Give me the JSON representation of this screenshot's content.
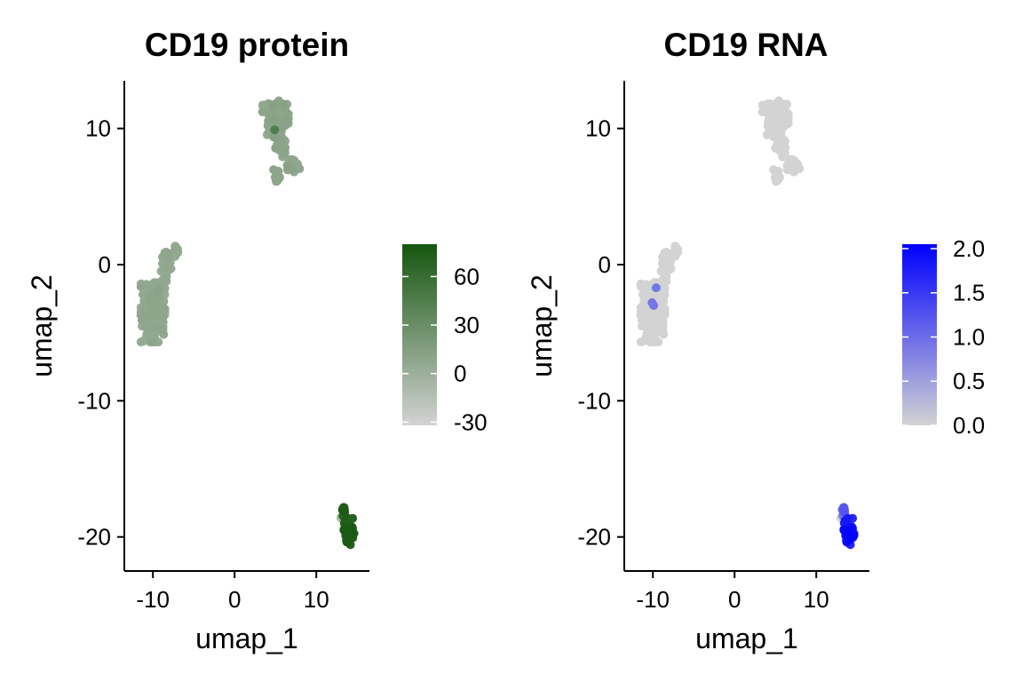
{
  "chart_data": [
    {
      "type": "scatter",
      "title": "CD19 protein",
      "xlabel": "umap_1",
      "ylabel": "umap_2",
      "xlim": [
        -13.5,
        16.5
      ],
      "ylim": [
        -22.5,
        13.5
      ],
      "xticks": [
        -10,
        0,
        10
      ],
      "yticks": [
        -20,
        -10,
        0,
        10
      ],
      "xtick_labels": [
        "-10",
        "0",
        "10"
      ],
      "ytick_labels": [
        "-20",
        "-10",
        "0",
        "10"
      ],
      "grid": false,
      "legend": {
        "placement": "right",
        "type": "colorbar",
        "range": [
          -32,
          80
        ],
        "ticks": [
          -30,
          0,
          30,
          60
        ],
        "tick_labels": [
          "-30",
          "0",
          "30",
          "60"
        ],
        "color_low": "#d3d3d3",
        "color_high": "#15560f"
      },
      "clusters": [
        {
          "cluster": "upper",
          "shape": "blob",
          "center": [
            5.0,
            10.7
          ],
          "spread": [
            1.3,
            1.1
          ],
          "n": 120,
          "value": 8,
          "value_spread": 4
        },
        {
          "cluster": "upper",
          "shape": "tail",
          "center": [
            5.8,
            8.8
          ],
          "spread": [
            0.7,
            0.7
          ],
          "n": 35,
          "value": 8,
          "value_spread": 3
        },
        {
          "cluster": "upper",
          "shape": "tail",
          "center": [
            7.2,
            7.3
          ],
          "spread": [
            0.7,
            0.5
          ],
          "n": 30,
          "value": 8,
          "value_spread": 3
        },
        {
          "cluster": "upper",
          "shape": "tail",
          "center": [
            5.3,
            6.5
          ],
          "spread": [
            0.4,
            0.5
          ],
          "n": 12,
          "value": 8,
          "value_spread": 3
        },
        {
          "cluster": "left",
          "shape": "blob",
          "center": [
            -10.0,
            -3.5
          ],
          "spread": [
            1.2,
            1.8
          ],
          "n": 320,
          "value": 5,
          "value_spread": 4
        },
        {
          "cluster": "left",
          "shape": "tail",
          "center": [
            -8.3,
            -0.3
          ],
          "spread": [
            0.5,
            1.2
          ],
          "n": 30,
          "value": 5,
          "value_spread": 3
        },
        {
          "cluster": "left",
          "shape": "tail",
          "center": [
            -7.2,
            1.0
          ],
          "spread": [
            0.3,
            0.3
          ],
          "n": 10,
          "value": 5,
          "value_spread": 3
        },
        {
          "cluster": "right",
          "shape": "blob",
          "center": [
            14.0,
            -19.6
          ],
          "spread": [
            0.5,
            0.8
          ],
          "n": 55,
          "value": 72,
          "value_spread": 6
        },
        {
          "cluster": "right",
          "shape": "tail",
          "center": [
            13.3,
            -18.0
          ],
          "spread": [
            0.2,
            0.4
          ],
          "n": 8,
          "value": 72,
          "value_spread": 5
        }
      ],
      "points": [
        {
          "x": 13.0,
          "y": -18.6,
          "value": -10
        },
        {
          "x": 4.9,
          "y": 9.9,
          "value": 45
        }
      ]
    },
    {
      "type": "scatter",
      "title": "CD19 RNA",
      "xlabel": "umap_1",
      "ylabel": "umap_2",
      "xlim": [
        -13.5,
        16.5
      ],
      "ylim": [
        -22.5,
        13.5
      ],
      "xticks": [
        -10,
        0,
        10
      ],
      "yticks": [
        -20,
        -10,
        0,
        10
      ],
      "xtick_labels": [
        "-10",
        "0",
        "10"
      ],
      "ytick_labels": [
        "-20",
        "-10",
        "0",
        "10"
      ],
      "grid": false,
      "legend": {
        "placement": "right",
        "type": "colorbar",
        "range": [
          0,
          2.05
        ],
        "ticks": [
          0,
          0.5,
          1.0,
          1.5,
          2.0
        ],
        "tick_labels": [
          "0.0",
          "0.5",
          "1.0",
          "1.5",
          "2.0"
        ],
        "color_low": "#d3d3d3",
        "color_high": "#0000ff"
      },
      "clusters": [
        {
          "cluster": "upper",
          "shape": "blob",
          "center": [
            5.0,
            10.7
          ],
          "spread": [
            1.3,
            1.1
          ],
          "n": 120,
          "value": 0,
          "value_spread": 0
        },
        {
          "cluster": "upper",
          "shape": "tail",
          "center": [
            5.8,
            8.8
          ],
          "spread": [
            0.7,
            0.7
          ],
          "n": 35,
          "value": 0,
          "value_spread": 0
        },
        {
          "cluster": "upper",
          "shape": "tail",
          "center": [
            7.2,
            7.3
          ],
          "spread": [
            0.7,
            0.5
          ],
          "n": 30,
          "value": 0,
          "value_spread": 0
        },
        {
          "cluster": "upper",
          "shape": "tail",
          "center": [
            5.3,
            6.5
          ],
          "spread": [
            0.4,
            0.5
          ],
          "n": 12,
          "value": 0,
          "value_spread": 0
        },
        {
          "cluster": "left",
          "shape": "blob",
          "center": [
            -10.0,
            -3.5
          ],
          "spread": [
            1.2,
            1.8
          ],
          "n": 320,
          "value": 0,
          "value_spread": 0
        },
        {
          "cluster": "left",
          "shape": "tail",
          "center": [
            -8.3,
            -0.3
          ],
          "spread": [
            0.5,
            1.2
          ],
          "n": 30,
          "value": 0,
          "value_spread": 0
        },
        {
          "cluster": "left",
          "shape": "tail",
          "center": [
            -7.2,
            1.0
          ],
          "spread": [
            0.3,
            0.3
          ],
          "n": 10,
          "value": 0,
          "value_spread": 0
        },
        {
          "cluster": "right",
          "shape": "blob",
          "center": [
            14.0,
            -19.6
          ],
          "spread": [
            0.5,
            0.8
          ],
          "n": 55,
          "value": 1.75,
          "value_spread": 0.3
        },
        {
          "cluster": "right",
          "shape": "tail",
          "center": [
            13.3,
            -18.0
          ],
          "spread": [
            0.2,
            0.4
          ],
          "n": 8,
          "value": 1.1,
          "value_spread": 0.2
        }
      ],
      "points": [
        {
          "x": -9.6,
          "y": -1.7,
          "value": 0.9
        },
        {
          "x": -10.1,
          "y": -2.8,
          "value": 0.9
        },
        {
          "x": -9.9,
          "y": -3.0,
          "value": 0.9
        },
        {
          "x": 13.0,
          "y": -18.6,
          "value": 0
        },
        {
          "x": 14.6,
          "y": -19.9,
          "value": 2.0
        },
        {
          "x": 14.1,
          "y": -20.2,
          "value": 2.0
        },
        {
          "x": 13.7,
          "y": -19.6,
          "value": 2.0
        }
      ]
    }
  ]
}
